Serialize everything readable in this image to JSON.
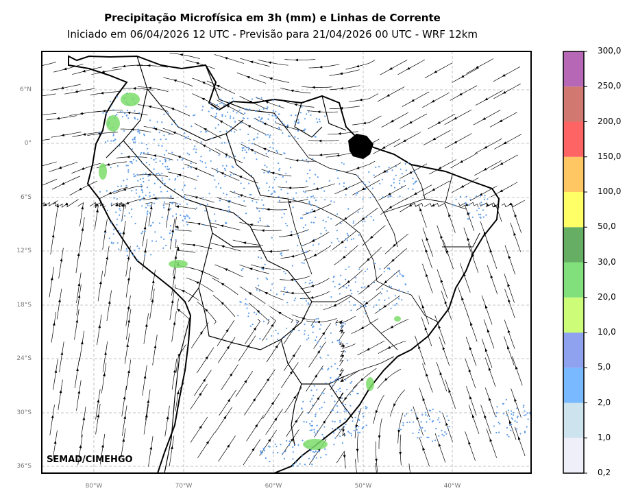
{
  "title": "Precipitação Microfísica em 3h (mm) e Linhas de Corrente",
  "subtitle": "Iniciado em 06/04/2026 12 UTC - Previsão para 21/04/2026 00 UTC - WRF 12km",
  "credit": "SEMAD/CIMEHGO",
  "lat_labels": [
    "6°N",
    "0°",
    "6°S",
    "12°S",
    "18°S",
    "24°S",
    "30°S",
    "36°S"
  ],
  "lon_labels": [
    "80°W",
    "70°W",
    "60°W",
    "50°W",
    "40°W"
  ],
  "colorbar": {
    "labels": [
      "0,2",
      "1,0",
      "2,0",
      "5,0",
      "10,0",
      "20,0",
      "30,0",
      "50,0",
      "100,0",
      "150,0",
      "200,0",
      "250,0",
      "300,0"
    ],
    "colors": [
      "#efeffa",
      "#cde3ee",
      "#79b9ff",
      "#8ea2f0",
      "#cdfd78",
      "#82e07c",
      "#66ae64",
      "#ffff66",
      "#ffc664",
      "#ff6464",
      "#d17870",
      "#b667b5"
    ]
  },
  "colors": {
    "rain_light": "#5a9ae8",
    "rain_heavy": "#7ddc6a",
    "streamline": "#000000",
    "grid": "#b0b0b0"
  }
}
